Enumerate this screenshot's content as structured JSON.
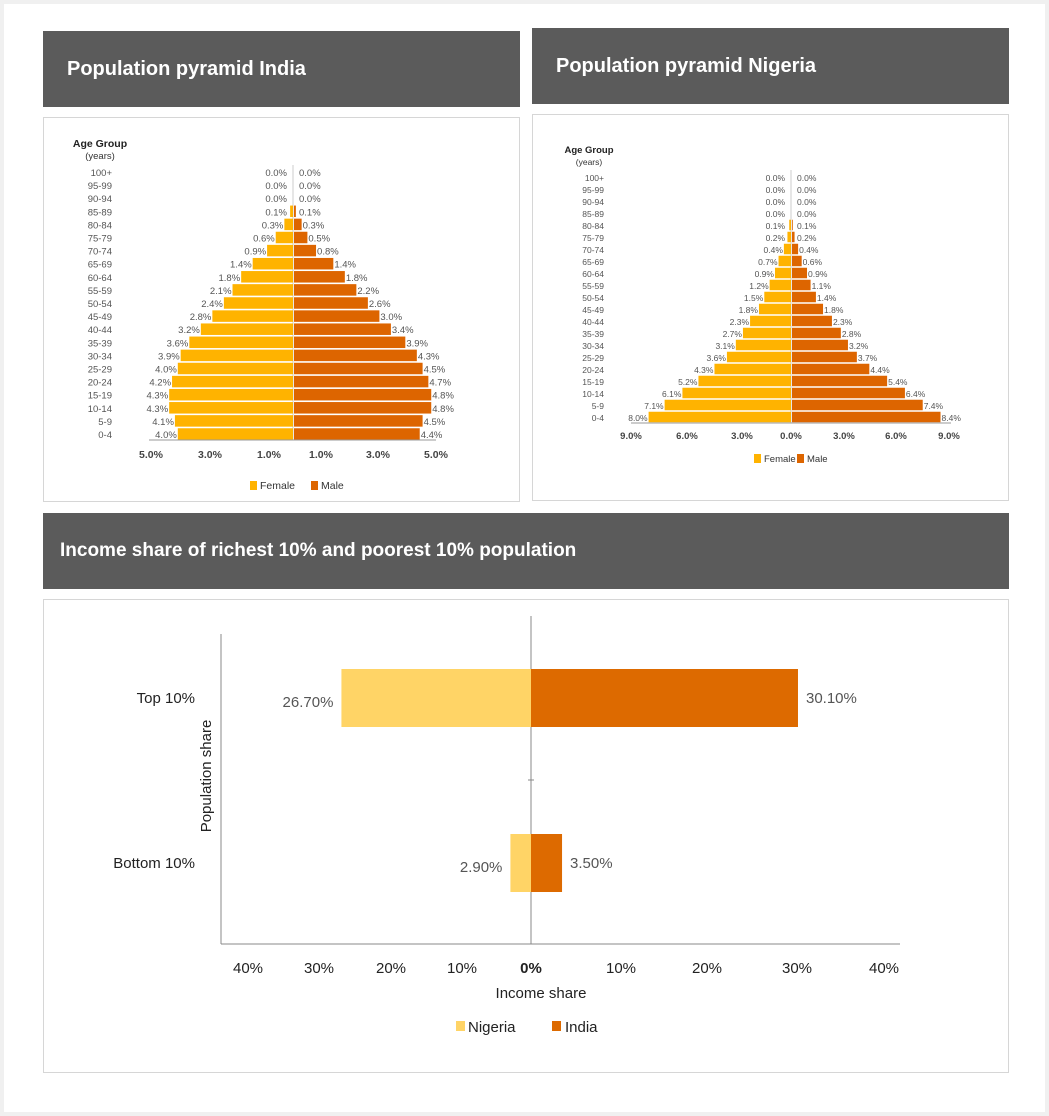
{
  "headers": {
    "india": "Population pyramid India",
    "nigeria": "Population pyramid Nigeria",
    "income": "Income share of richest 10% and poorest 10% population"
  },
  "colors": {
    "female": "#FFB300",
    "male": "#DD6500",
    "nigeria": "#FFD466",
    "india": "#DD6A00",
    "header_bg": "#5b5b5b"
  },
  "chart_data": [
    {
      "type": "bar",
      "orientation": "population-pyramid",
      "title": "Population pyramid India",
      "ylabel": "Age Group",
      "ylabel_sub": "(years)",
      "categories": [
        "100+",
        "95-99",
        "90-94",
        "85-89",
        "80-84",
        "75-79",
        "70-74",
        "65-69",
        "60-64",
        "55-59",
        "50-54",
        "45-49",
        "40-44",
        "35-39",
        "30-34",
        "25-29",
        "20-24",
        "15-19",
        "10-14",
        "5-9",
        "0-4"
      ],
      "series": [
        {
          "name": "Female",
          "values": [
            0.0,
            0.0,
            0.0,
            0.1,
            0.3,
            0.6,
            0.9,
            1.4,
            1.8,
            2.1,
            2.4,
            2.8,
            3.2,
            3.6,
            3.9,
            4.0,
            4.2,
            4.3,
            4.3,
            4.1,
            4.0
          ]
        },
        {
          "name": "Male",
          "values": [
            0.0,
            0.0,
            0.0,
            0.1,
            0.3,
            0.5,
            0.8,
            1.4,
            1.8,
            2.2,
            2.6,
            3.0,
            3.4,
            3.9,
            4.3,
            4.5,
            4.7,
            4.8,
            4.8,
            4.5,
            4.4
          ]
        }
      ],
      "value_labels_female": [
        "0.0%",
        "0.0%",
        "0.0%",
        "0.1%",
        "0.3%",
        "0.6%",
        "0.9%",
        "1.4%",
        "1.8%",
        "2.1%",
        "2.4%",
        "2.8%",
        "3.2%",
        "3.6%",
        "3.9%",
        "4.0%",
        "4.2%",
        "4.3%",
        "4.3%",
        "4.1%",
        "4.0%"
      ],
      "value_labels_male": [
        "0.0%",
        "0.0%",
        "0.0%",
        "0.1%",
        "0.3%",
        "0.5%",
        "0.8%",
        "1.4%",
        "1.8%",
        "2.2%",
        "2.6%",
        "3.0%",
        "3.4%",
        "3.9%",
        "4.3%",
        "4.5%",
        "4.7%",
        "4.8%",
        "4.8%",
        "4.5%",
        "4.4%"
      ],
      "xticks": [
        "5.0%",
        "3.0%",
        "1.0%",
        "1.0%",
        "3.0%",
        "5.0%"
      ],
      "xlim": [
        -5,
        5
      ],
      "legend": [
        "Female",
        "Male"
      ],
      "legend_position": "bottom"
    },
    {
      "type": "bar",
      "orientation": "population-pyramid",
      "title": "Population pyramid Nigeria",
      "ylabel": "Age Group",
      "ylabel_sub": "(years)",
      "categories": [
        "100+",
        "95-99",
        "90-94",
        "85-89",
        "80-84",
        "75-79",
        "70-74",
        "65-69",
        "60-64",
        "55-59",
        "50-54",
        "45-49",
        "40-44",
        "35-39",
        "30-34",
        "25-29",
        "20-24",
        "15-19",
        "10-14",
        "5-9",
        "0-4"
      ],
      "series": [
        {
          "name": "Female",
          "values": [
            0.0,
            0.0,
            0.0,
            0.0,
            0.1,
            0.2,
            0.4,
            0.7,
            0.9,
            1.2,
            1.5,
            1.8,
            2.3,
            2.7,
            3.1,
            3.6,
            4.3,
            5.2,
            6.1,
            7.1,
            8.0
          ]
        },
        {
          "name": "Male",
          "values": [
            0.0,
            0.0,
            0.0,
            0.0,
            0.1,
            0.2,
            0.4,
            0.6,
            0.9,
            1.1,
            1.4,
            1.8,
            2.3,
            2.8,
            3.2,
            3.7,
            4.4,
            5.4,
            6.4,
            7.4,
            8.4
          ]
        }
      ],
      "value_labels_female": [
        "0.0%",
        "0.0%",
        "0.0%",
        "0.0%",
        "0.1%",
        "0.2%",
        "0.4%",
        "0.7%",
        "0.9%",
        "1.2%",
        "1.5%",
        "1.8%",
        "2.3%",
        "2.7%",
        "3.1%",
        "3.6%",
        "4.3%",
        "5.2%",
        "6.1%",
        "7.1%",
        "8.0%"
      ],
      "value_labels_male": [
        "0.0%",
        "0.0%",
        "0.0%",
        "0.0%",
        "0.1%",
        "0.2%",
        "0.4%",
        "0.6%",
        "0.9%",
        "1.1%",
        "1.4%",
        "1.8%",
        "2.3%",
        "2.8%",
        "3.2%",
        "3.7%",
        "4.4%",
        "5.4%",
        "6.4%",
        "7.4%",
        "8.4%"
      ],
      "xticks": [
        "9.0%",
        "6.0%",
        "3.0%",
        "0.0%",
        "3.0%",
        "6.0%",
        "9.0%"
      ],
      "xlim": [
        -9,
        9
      ],
      "legend": [
        "Female",
        "Male"
      ],
      "legend_position": "bottom"
    },
    {
      "type": "bar",
      "orientation": "horizontal-diverging",
      "title": "Income share of richest 10% and poorest 10% population",
      "xlabel": "Income share",
      "ylabel": "Population share",
      "categories": [
        "Top 10%",
        "Bottom 10%"
      ],
      "series": [
        {
          "name": "Nigeria",
          "values": [
            26.7,
            2.9
          ],
          "labels": [
            "26.70%",
            "2.90%"
          ]
        },
        {
          "name": "India",
          "values": [
            30.1,
            3.5
          ],
          "labels": [
            "30.10%",
            "3.50%"
          ]
        }
      ],
      "xticks": [
        "40%",
        "30%",
        "20%",
        "10%",
        "0%",
        "10%",
        "20%",
        "30%",
        "40%"
      ],
      "xlim": [
        -40,
        40
      ],
      "legend": [
        "Nigeria",
        "India"
      ],
      "legend_position": "bottom"
    }
  ]
}
